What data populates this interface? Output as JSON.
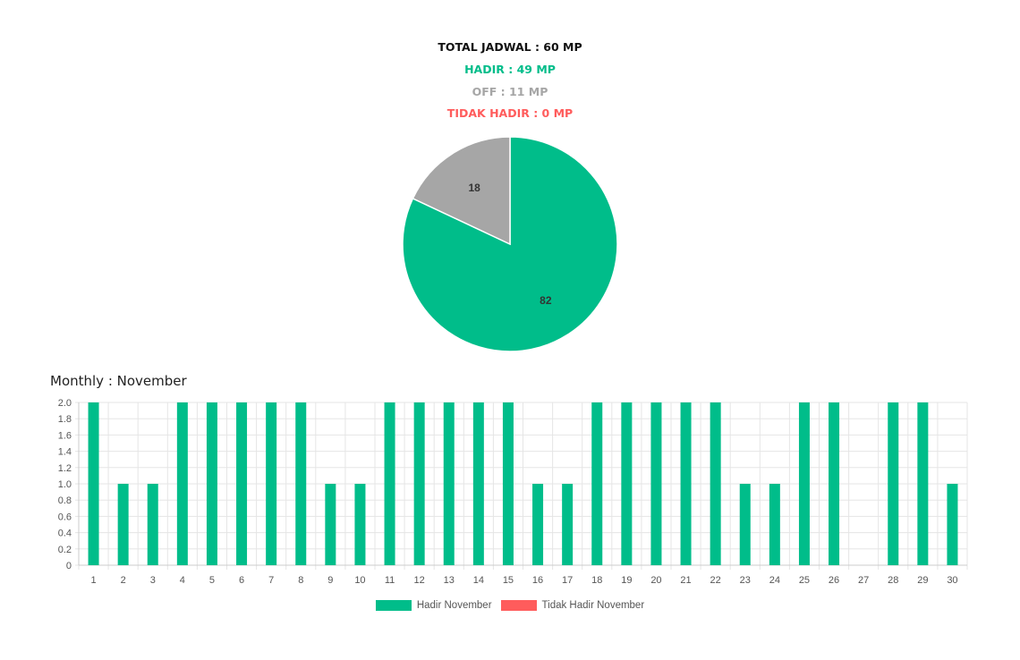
{
  "summary": {
    "total": "TOTAL JADWAL : 60 MP",
    "hadir": "HADIR : 49 MP",
    "off": "OFF : 11 MP",
    "tidak_hadir": "TIDAK HADIR : 0 MP"
  },
  "colors": {
    "hadir": "#00bd8a",
    "off": "#a6a6a6",
    "tidak_hadir": "#ff5c5c",
    "grid": "#e5e5e5"
  },
  "chart_data": [
    {
      "type": "pie",
      "slices": [
        {
          "label": "82",
          "value": 82,
          "color": "#00bd8a"
        },
        {
          "label": "18",
          "value": 18,
          "color": "#a6a6a6"
        }
      ]
    },
    {
      "type": "bar",
      "title": "Monthly : November",
      "categories": [
        "1",
        "2",
        "3",
        "4",
        "5",
        "6",
        "7",
        "8",
        "9",
        "10",
        "11",
        "12",
        "13",
        "14",
        "15",
        "16",
        "17",
        "18",
        "19",
        "20",
        "21",
        "22",
        "23",
        "24",
        "25",
        "26",
        "27",
        "28",
        "29",
        "30"
      ],
      "series": [
        {
          "name": "Hadir November",
          "color": "#00bd8a",
          "values": [
            2,
            1,
            1,
            2,
            2,
            2,
            2,
            2,
            1,
            1,
            2,
            2,
            2,
            2,
            2,
            1,
            1,
            2,
            2,
            2,
            2,
            2,
            1,
            1,
            2,
            2,
            0,
            2,
            2,
            1
          ]
        },
        {
          "name": "Tidak Hadir November",
          "color": "#ff5c5c",
          "values": [
            0,
            0,
            0,
            0,
            0,
            0,
            0,
            0,
            0,
            0,
            0,
            0,
            0,
            0,
            0,
            0,
            0,
            0,
            0,
            0,
            0,
            0,
            0,
            0,
            0,
            0,
            0,
            0,
            0,
            0
          ]
        }
      ],
      "yticks": [
        "0",
        "0.2",
        "0.4",
        "0.6",
        "0.8",
        "1.0",
        "1.2",
        "1.4",
        "1.6",
        "1.8",
        "2.0"
      ],
      "ylim": [
        0,
        2
      ],
      "grid": true,
      "legend": "bottom"
    }
  ]
}
